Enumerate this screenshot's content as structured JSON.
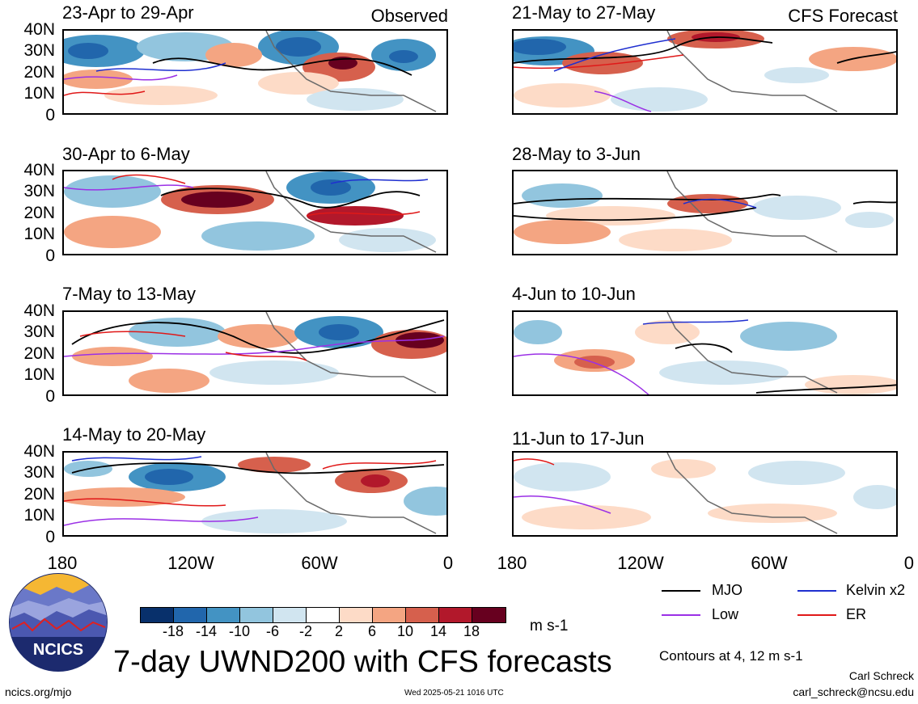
{
  "colors": {
    "mjo": "#000000",
    "kelvin": "#1f2fd0",
    "low": "#9b30e6",
    "er": "#e01818",
    "land": "#6a6a6a",
    "scale": [
      "#08306b",
      "#2166ac",
      "#4393c3",
      "#92c5de",
      "#d1e5f0",
      "#ffffff",
      "#fddbc7",
      "#f4a582",
      "#d6604d",
      "#b2182b",
      "#67001f"
    ]
  },
  "panels": [
    {
      "id": "p1",
      "title": "23-Apr to 29-Apr",
      "tag": "Observed"
    },
    {
      "id": "p2",
      "title": "21-May to 27-May",
      "tag": "CFS Forecast"
    },
    {
      "id": "p3",
      "title": "30-Apr to 6-May",
      "tag": ""
    },
    {
      "id": "p4",
      "title": "28-May to 3-Jun",
      "tag": ""
    },
    {
      "id": "p5",
      "title": "7-May to 13-May",
      "tag": ""
    },
    {
      "id": "p6",
      "title": "4-Jun to 10-Jun",
      "tag": ""
    },
    {
      "id": "p7",
      "title": "14-May to 20-May",
      "tag": ""
    },
    {
      "id": "p8",
      "title": "11-Jun to 17-Jun",
      "tag": ""
    }
  ],
  "y_ticks": [
    "40N",
    "30N",
    "20N",
    "10N",
    "0"
  ],
  "x_ticks": [
    "180",
    "120W",
    "60W",
    "0"
  ],
  "colorbar": {
    "labels": [
      "-18",
      "-14",
      "-10",
      "-6",
      "-2",
      "2",
      "6",
      "10",
      "14",
      "18"
    ],
    "unit": "m s-1"
  },
  "legend": {
    "mjo": "MJO",
    "kelvin": "Kelvin x2",
    "low": "Low",
    "er": "ER",
    "contour_note": "Contours at 4, 12 m s-1"
  },
  "main_title": "7-day UWND200 with CFS forecasts",
  "logo_text": "NCICS",
  "footer": {
    "url": "ncics.org/mjo",
    "timestamp": "Wed 2025-05-21 1016 UTC",
    "author": "Carl Schreck",
    "email": "carl_schreck@ncsu.edu"
  }
}
